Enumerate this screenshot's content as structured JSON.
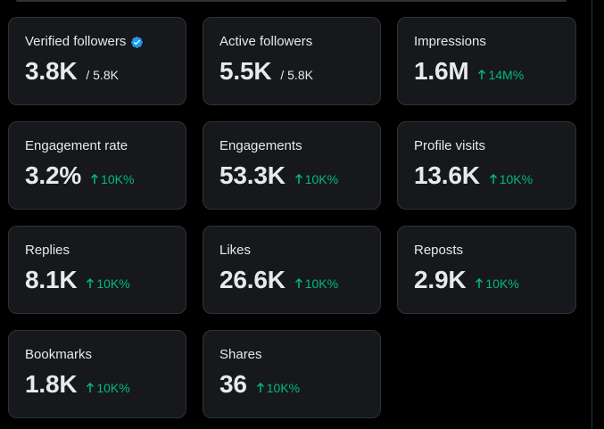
{
  "colors": {
    "background": "#000000",
    "card_bg": "#16181c",
    "card_border": "#2f3336",
    "text": "#e7e9ea",
    "positive": "#00ba7c",
    "verified": "#1d9bf0"
  },
  "cards": [
    {
      "label": "Verified followers",
      "value": "3.8K",
      "sub": "/ 5.8K",
      "verified": true
    },
    {
      "label": "Active followers",
      "value": "5.5K",
      "sub": "/ 5.8K"
    },
    {
      "label": "Impressions",
      "value": "1.6M",
      "change": "14M%"
    },
    {
      "label": "Engagement rate",
      "value": "3.2%",
      "change": "10K%"
    },
    {
      "label": "Engagements",
      "value": "53.3K",
      "change": "10K%"
    },
    {
      "label": "Profile visits",
      "value": "13.6K",
      "change": "10K%"
    },
    {
      "label": "Replies",
      "value": "8.1K",
      "change": "10K%"
    },
    {
      "label": "Likes",
      "value": "26.6K",
      "change": "10K%"
    },
    {
      "label": "Reposts",
      "value": "2.9K",
      "change": "10K%"
    },
    {
      "label": "Bookmarks",
      "value": "1.8K",
      "change": "10K%"
    },
    {
      "label": "Shares",
      "value": "36",
      "change": "10K%"
    }
  ]
}
